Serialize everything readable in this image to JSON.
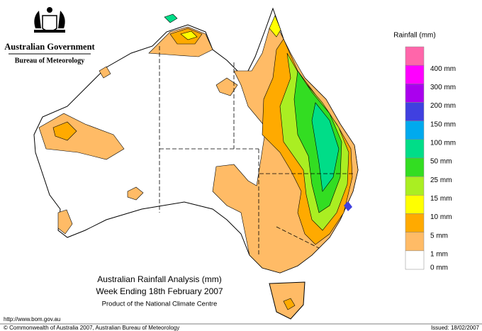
{
  "header": {
    "government": "Australian Government",
    "agency": "Bureau of Meteorology"
  },
  "legend": {
    "title": "Rainfall (mm)",
    "items": [
      {
        "label": "400 mm",
        "color": "#ff66aa"
      },
      {
        "label": "300 mm",
        "color": "#ff00ff"
      },
      {
        "label": "200 mm",
        "color": "#aa00ee"
      },
      {
        "label": "150 mm",
        "color": "#4040e0"
      },
      {
        "label": "100 mm",
        "color": "#00aaee"
      },
      {
        "label": "50 mm",
        "color": "#00dd88"
      },
      {
        "label": "25 mm",
        "color": "#33dd22"
      },
      {
        "label": "15 mm",
        "color": "#aaee22"
      },
      {
        "label": "10 mm",
        "color": "#ffff00"
      },
      {
        "label": "5 mm",
        "color": "#ffaa00"
      },
      {
        "label": "1 mm",
        "color": "#ffbb66"
      },
      {
        "label": "0 mm",
        "color": "#ffffff"
      }
    ]
  },
  "map": {
    "title": "Australian Rainfall Analysis (mm)",
    "subtitle": "Week Ending 18th February 2007",
    "credit": "Product of the National Climate Centre"
  },
  "footer": {
    "url": "http://www.bom.gov.au",
    "copyright": "© Commonwealth of Australia 2007, Australian Bureau of Meteorology",
    "issued": "Issued: 18/02/2007"
  }
}
